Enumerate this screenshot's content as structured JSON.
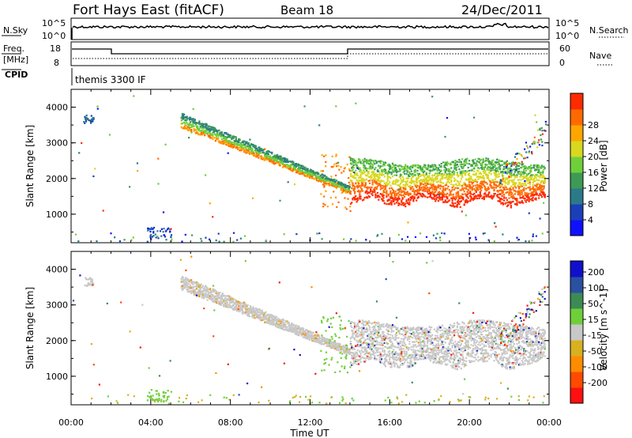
{
  "header": {
    "station": "Fort Hays East (fitACF)",
    "beam": "Beam 18",
    "date": "24/Dec/2011"
  },
  "panels": {
    "nsky": {
      "label": "N.Sky",
      "ticks_left": [
        "10^5",
        "10^0"
      ],
      "ticks_right": [
        "10^5",
        "10^0"
      ],
      "right_label": "N.Search"
    },
    "freq": {
      "label_line1": "Freq.",
      "label_line2": "[MHz]",
      "ticks_left": [
        "18",
        "8"
      ],
      "ticks_right": [
        "60",
        "0"
      ],
      "right_label": "Nave"
    },
    "cpid": {
      "label": "CPID",
      "value": "themis 3300 IF"
    }
  },
  "chart_data": [
    {
      "type": "heatmap",
      "name": "power",
      "ylabel": "Slant Range [km]",
      "yticks": [
        "1000",
        "2000",
        "3000",
        "4000"
      ],
      "ylim": [
        200,
        4500
      ],
      "xticks": [
        "00:00",
        "04:00",
        "08:00",
        "12:00",
        "16:00",
        "20:00",
        "00:00"
      ],
      "xlim_hours": [
        0,
        24
      ],
      "colorbar": {
        "label": "Power [dB]",
        "ticks": [
          "4",
          "8",
          "12",
          "16",
          "20",
          "24",
          "28"
        ],
        "colors": [
          "#1010ff",
          "#1a3fb8",
          "#2a7a8a",
          "#3d9a55",
          "#6fcf3a",
          "#d8d820",
          "#ffa500",
          "#ff6a00",
          "#ff2a00"
        ]
      },
      "features": [
        {
          "hours": [
            5.5,
            14.0
          ],
          "range_km": [
            3700,
            1700
          ],
          "description_color": "#2a7a8a"
        },
        {
          "hours": [
            14.0,
            23.8
          ],
          "range_km": [
            1100,
            2300
          ],
          "description_color": "#ff3a00"
        }
      ]
    },
    {
      "type": "heatmap",
      "name": "velocity",
      "ylabel": "Slant Range [km]",
      "yticks": [
        "1000",
        "2000",
        "3000",
        "4000"
      ],
      "ylim": [
        200,
        4500
      ],
      "xticks": [
        "00:00",
        "04:00",
        "08:00",
        "12:00",
        "16:00",
        "20:00",
        "00:00"
      ],
      "xlabel": "Time UT",
      "xlim_hours": [
        0,
        24
      ],
      "colorbar": {
        "label": "Velocity [m s^-1]",
        "ticks": [
          "200",
          "100",
          "50",
          "15",
          "-15",
          "-50",
          "-100",
          "-200"
        ],
        "colors": [
          "#1010cc",
          "#2a50a0",
          "#3d8a55",
          "#6fcf3a",
          "#c8c8c8",
          "#d8b020",
          "#ff8c00",
          "#ff4a00",
          "#ff1010"
        ]
      }
    }
  ],
  "colors": {
    "ground_scatter": "#c0c0c0",
    "axis": "#000000"
  }
}
